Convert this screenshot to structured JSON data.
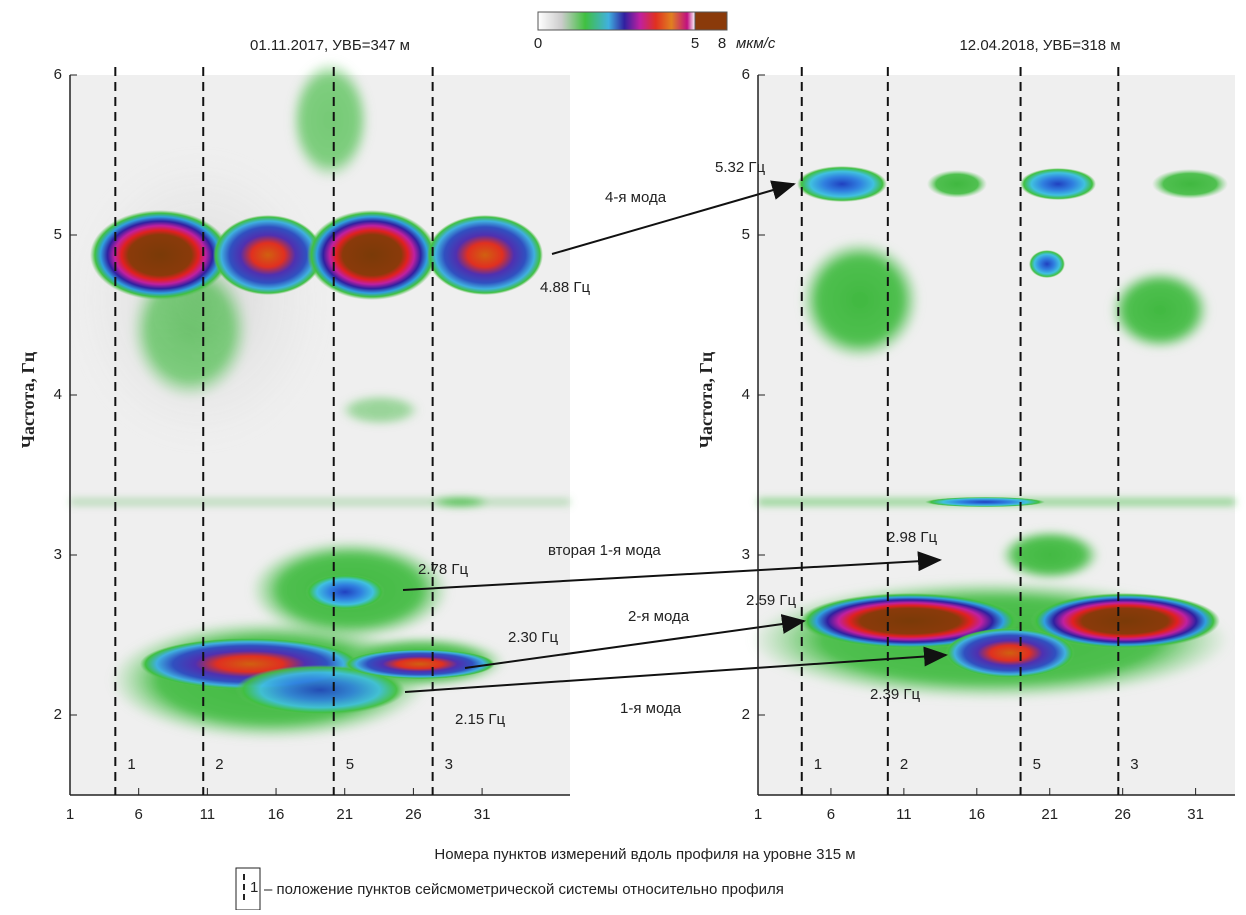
{
  "chart_data": [
    {
      "type": "heatmap",
      "title": "01.11.2017, УВБ=347 м",
      "ylabel": "Частота, Гц",
      "xlim": [
        1,
        37.4
      ],
      "xticks": [
        1,
        6,
        11,
        16,
        21,
        26,
        31
      ],
      "ylim": [
        1.5,
        6
      ],
      "yticks": [
        2,
        3,
        4,
        5,
        6
      ],
      "stations": [
        {
          "x": 4.3,
          "label": "1"
        },
        {
          "x": 10.7,
          "label": "2"
        },
        {
          "x": 20.2,
          "label": "5"
        },
        {
          "x": 27.4,
          "label": "3"
        }
      ],
      "annotations": [
        "4.88 Гц",
        "2.78 Гц",
        "2.30 Гц",
        "2.15 Гц"
      ]
    },
    {
      "type": "heatmap",
      "title": "12.04.2018, УВБ=318 м",
      "ylabel": "Частота, Гц",
      "xlim": [
        1,
        33.7
      ],
      "xticks": [
        1,
        6,
        11,
        16,
        21,
        26,
        31
      ],
      "ylim": [
        1.5,
        6
      ],
      "yticks": [
        2,
        3,
        4,
        5,
        6
      ],
      "stations": [
        {
          "x": 4.0,
          "label": "1"
        },
        {
          "x": 9.9,
          "label": "2"
        },
        {
          "x": 19.0,
          "label": "5"
        },
        {
          "x": 25.7,
          "label": "3"
        }
      ],
      "annotations": [
        "5.32 Гц",
        "2.98 Гц",
        "2.59 Гц",
        "2.39 Гц"
      ]
    }
  ],
  "colorbar": {
    "ticks": [
      0,
      5,
      8
    ],
    "unit": "мкм/с"
  },
  "arrows": [
    "4-я мода",
    "вторая 1-я мода",
    "2-я мода",
    "1-я мода"
  ],
  "xlabel": "Номера пунктов измерений вдоль профиля на уровне 315 м",
  "legend": {
    "marker": "1",
    "text": "– положение пунктов сейсмометрической системы относительно профиля"
  }
}
